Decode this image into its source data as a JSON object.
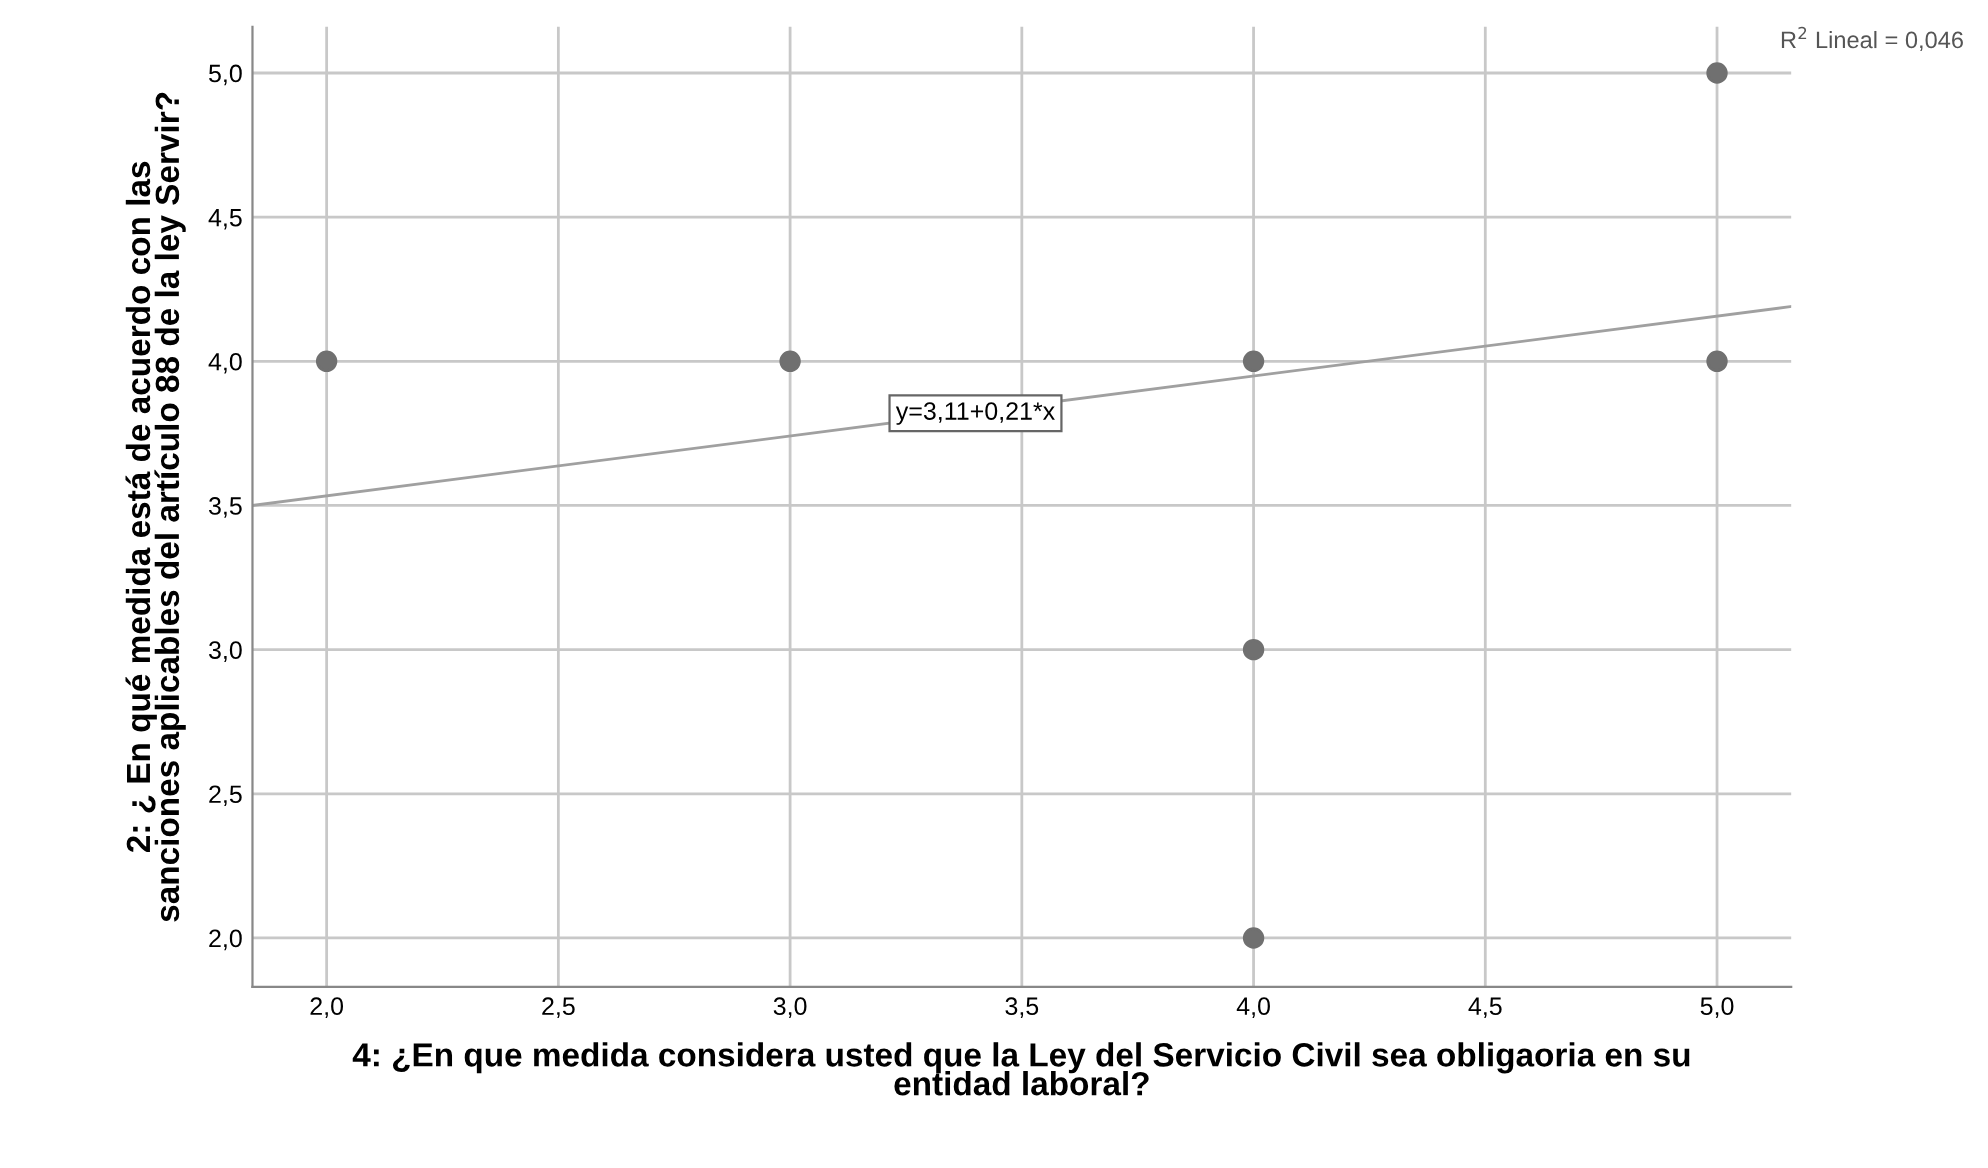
{
  "chart_data": {
    "type": "scatter",
    "xlabel": "4: ¿En que medida considera usted que la Ley del Servicio Civil sea obligaoria en su\nentidad laboral?",
    "ylabel": "2: ¿ En qué medida está de acuerdo con las\nsanciones aplicables del artículo 88 de la ley Servir?",
    "series": [
      {
        "x": [
          2,
          3,
          4,
          4,
          4,
          5,
          5
        ],
        "values": [
          4,
          4,
          4,
          3,
          2,
          5,
          4
        ],
        "color": "#707070",
        "marker": "circle"
      },
      {
        "type": "line",
        "x": [
          1.84,
          5.16
        ],
        "values": [
          3.5,
          4.19
        ],
        "color": "#a0a0a0",
        "marker": "none",
        "line_style": "solid"
      }
    ],
    "annotations": [
      "R$^{2}$ Lineal = 0,046",
      {
        "text": "y=3,11+0,21*x",
        "x": 3.4,
        "y": 3.82
      }
    ],
    "xlim": [
      1.84,
      5.16
    ],
    "ylim": [
      1.83,
      5.16
    ],
    "xticks": [
      {
        "value": 2,
        "label": "2,0"
      },
      {
        "value": 2.5,
        "label": "2,5"
      },
      {
        "value": 3,
        "label": "3,0"
      },
      {
        "value": 3.5,
        "label": "3,5"
      },
      {
        "value": 4,
        "label": "4,0"
      },
      {
        "value": 4.5,
        "label": "4,5"
      },
      {
        "value": 5,
        "label": "5,0"
      }
    ],
    "yticks": [
      {
        "value": 2,
        "label": "2,0"
      },
      {
        "value": 2.5,
        "label": "2,5"
      },
      {
        "value": 3,
        "label": "3,0"
      },
      {
        "value": 3.5,
        "label": "3,5"
      },
      {
        "value": 4,
        "label": "4,0"
      },
      {
        "value": 4.5,
        "label": "4,5"
      },
      {
        "value": 5,
        "label": "5,0"
      }
    ],
    "grid": true
  }
}
